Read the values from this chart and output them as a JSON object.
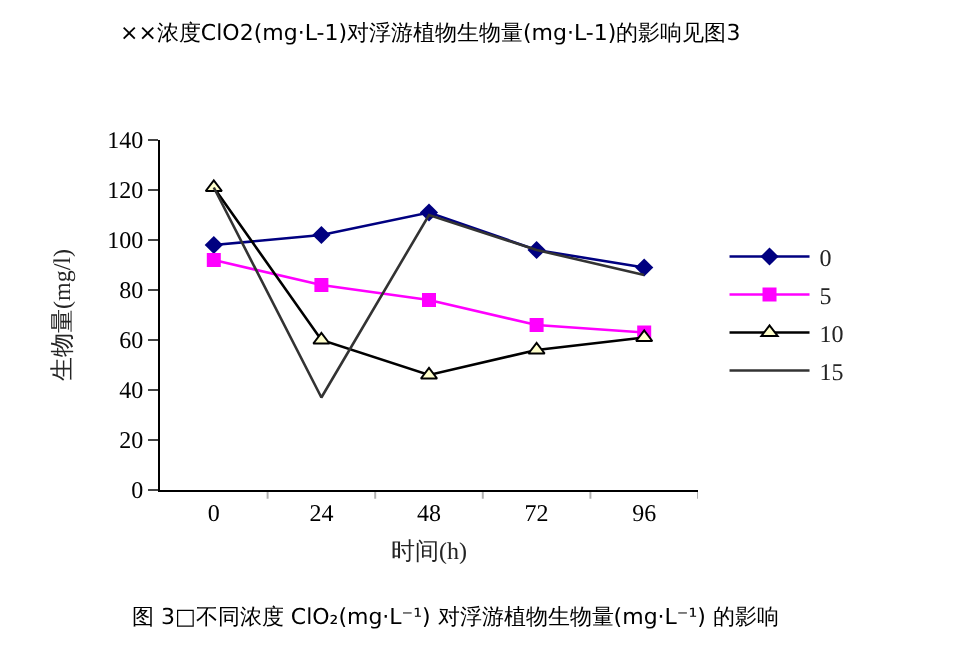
{
  "chart_data": {
    "type": "line",
    "xlabel": "时间(h)",
    "ylabel": "生物量(mg/l)",
    "categories": [
      "0",
      "24",
      "48",
      "72",
      "96"
    ],
    "series": [
      {
        "name": "0",
        "color": "#000080",
        "marker": "diamond",
        "values": [
          98,
          102,
          111,
          96,
          89
        ]
      },
      {
        "name": "5",
        "color": "#ff00ff",
        "marker": "square",
        "values": [
          92,
          82,
          76,
          66,
          63
        ]
      },
      {
        "name": "10",
        "color": "#000000",
        "marker": "triangle",
        "values": [
          121,
          60,
          46,
          56,
          61
        ]
      },
      {
        "name": "15",
        "color": "#333333",
        "marker": "none",
        "values": [
          121,
          37,
          110,
          96,
          86
        ]
      }
    ],
    "ylim": [
      0,
      140
    ],
    "yticks": [
      0,
      20,
      40,
      60,
      80,
      100,
      120,
      140
    ],
    "legend": "right",
    "annotations": [
      "××浓度ClO2(mg·L-1)对浮游植物生物量(mg·L-1)的影响见图3",
      "图 3□不同浓度 ClO₂(mg·L⁻¹) 对浮游植物生物量(mg·L⁻¹) 的影响"
    ]
  }
}
